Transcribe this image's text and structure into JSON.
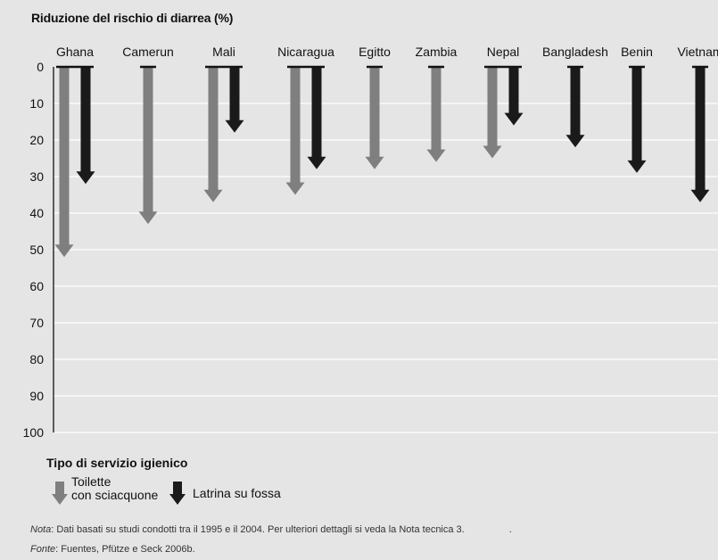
{
  "chart_data": {
    "type": "bar",
    "title": "Riduzione del rischio di diarrea (%)",
    "categories": [
      "Ghana",
      "Camerun",
      "Mali",
      "Nicaragua",
      "Egitto",
      "Zambia",
      "Nepal",
      "Bangladesh",
      "Benin",
      "Vietnam"
    ],
    "series": [
      {
        "name": "Toilette con sciacquone",
        "values": [
          52,
          43,
          37,
          35,
          28,
          26,
          25,
          null,
          null,
          null
        ],
        "color": "#7f7f7f"
      },
      {
        "name": "Latrina su fossa",
        "values": [
          32,
          null,
          18,
          28,
          null,
          null,
          16,
          22,
          29,
          37
        ],
        "color": "#1a1a1a"
      }
    ],
    "yticks": [
      0,
      10,
      20,
      30,
      40,
      50,
      60,
      70,
      80,
      90,
      100
    ],
    "ylim": [
      0,
      100
    ],
    "y_inverted": true,
    "grid": true,
    "legend_title": "Tipo di servizio igienico",
    "legend_labels": {
      "flush_line1": "Toilette",
      "flush_line2": "con sciacquone",
      "pit": "Latrina su fossa"
    },
    "legend_placement": "bottom-left"
  },
  "footnotes": {
    "note_label": "Nota",
    "note_text": ": Dati basati su studi condotti tra il 1995 e il 2004. Per ulteriori dettagli si veda la Nota tecnica 3.",
    "note_trailing": ".",
    "source_label": "Fonte",
    "source_text": ":  Fuentes, Pfütze e Seck 2006b."
  }
}
